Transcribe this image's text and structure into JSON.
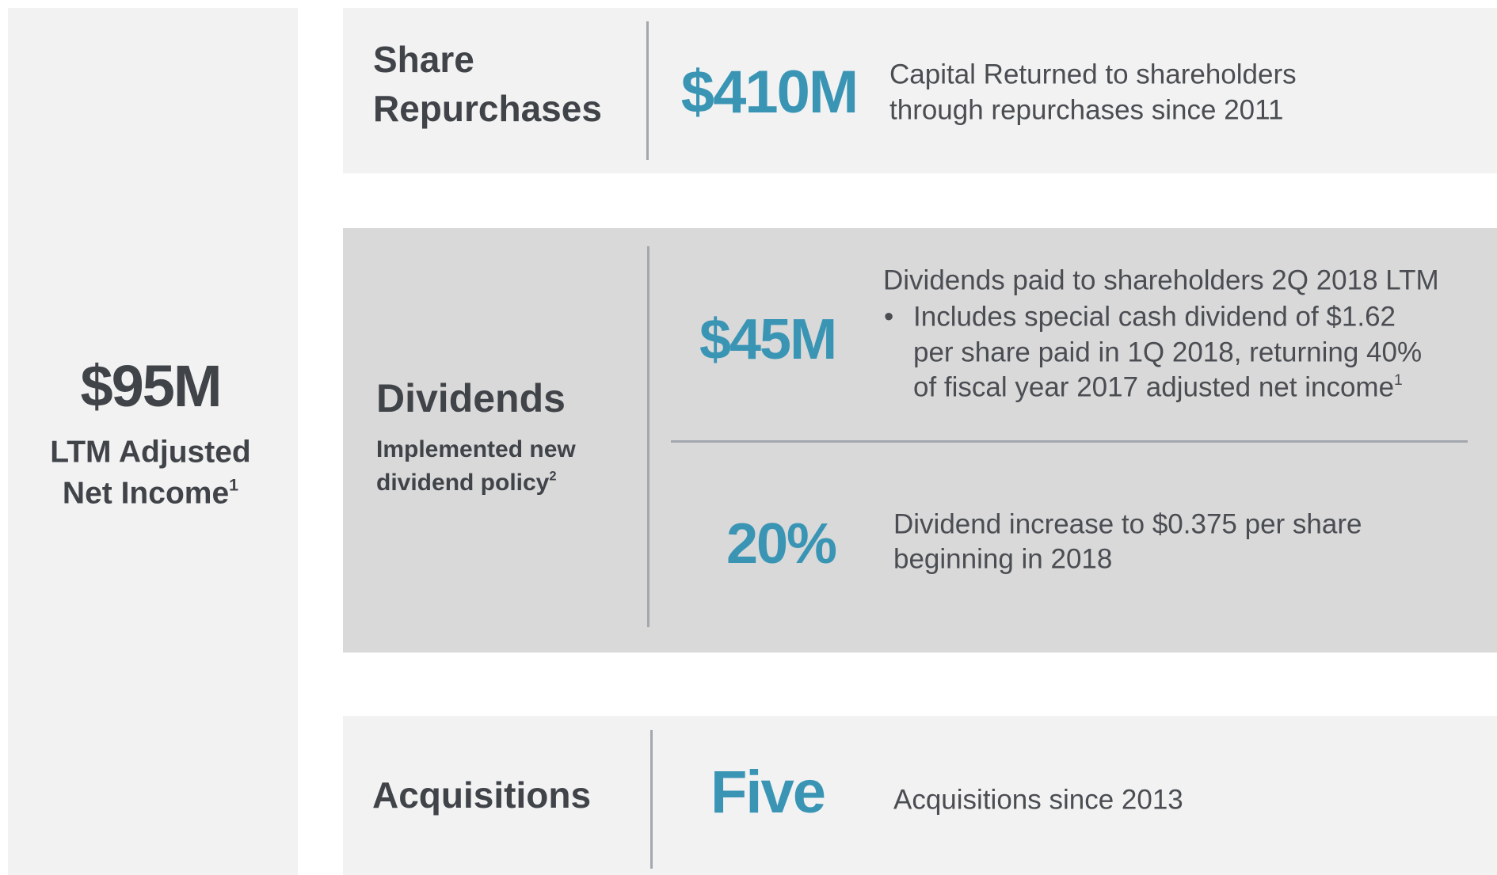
{
  "left": {
    "value": "$95M",
    "label_lines": [
      "LTM Adjusted",
      "Net Income"
    ],
    "label_sup": "1"
  },
  "share_repurchases": {
    "title_lines": [
      "Share",
      "Repurchases"
    ],
    "value": "$410M",
    "description_lines": [
      "Capital Returned to shareholders",
      "through repurchases since 2011"
    ]
  },
  "dividends": {
    "title": "Dividends",
    "subtitle_lines": [
      "Implemented new",
      "dividend policy"
    ],
    "subtitle_sup": "2",
    "items": [
      {
        "value": "$45M",
        "description": "Dividends paid to shareholders 2Q 2018 LTM",
        "bullet_lines": [
          "Includes special cash dividend of $1.62",
          "per share paid in 1Q 2018, returning 40%",
          "of fiscal year 2017 adjusted net income"
        ],
        "bullet_sup": "1"
      },
      {
        "value": "20%",
        "description_lines": [
          "Dividend increase to $0.375 per share",
          "beginning in 2018"
        ]
      }
    ]
  },
  "acquisitions": {
    "title": "Acquisitions",
    "value": "Five",
    "description": "Acquisitions since 2013"
  }
}
